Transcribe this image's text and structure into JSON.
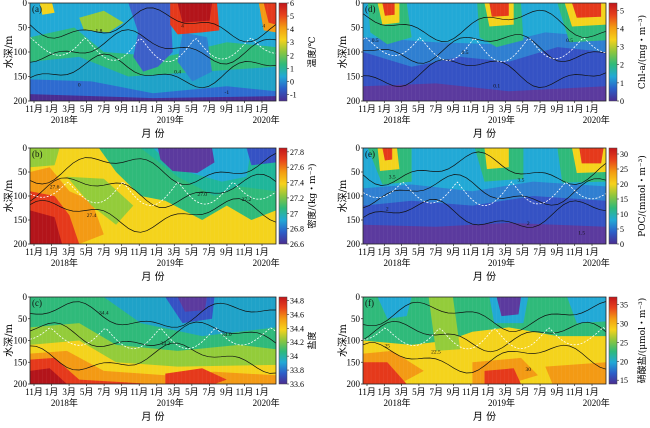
{
  "figure": {
    "xlabel": "月 份",
    "ylabel": "水深/m"
  },
  "chart_data": [
    {
      "type": "heatmap",
      "panel_label": "(a)",
      "variable_label": "温度/℃",
      "x_ticks": [
        "11月",
        "1月",
        "3月",
        "5月",
        "7月",
        "9月",
        "11月",
        "1月",
        "3月",
        "5月",
        "7月",
        "9月",
        "11月",
        "1月"
      ],
      "year_labels": [
        "2018年",
        "2019年",
        "2020年"
      ],
      "y_ticks": [
        0,
        50,
        100,
        150,
        200
      ],
      "ylim": [
        200,
        0
      ],
      "colorbar_ticks": [
        6,
        5,
        4,
        3,
        2,
        1,
        0,
        -1
      ],
      "colorbar_range": [
        -1.5,
        6
      ],
      "contour_labels": [
        "1.8",
        "0",
        "-1",
        "4",
        "4",
        "0.4"
      ],
      "colors": [
        "#4a2d91",
        "#2b5fc9",
        "#22a9d6",
        "#2fba7a",
        "#8cc63f",
        "#f6d21b",
        "#f39c12",
        "#e8431c",
        "#c2161b"
      ]
    },
    {
      "type": "heatmap",
      "panel_label": "(b)",
      "variable_label": "密度/(kg・m⁻³)",
      "x_ticks": [
        "11月",
        "1月",
        "3月",
        "5月",
        "7月",
        "9月",
        "11月",
        "1月",
        "3月",
        "5月",
        "7月",
        "9月",
        "11月",
        "1月"
      ],
      "year_labels": [
        "2018年",
        "2019年",
        "2020年"
      ],
      "y_ticks": [
        0,
        50,
        100,
        150,
        200
      ],
      "ylim": [
        200,
        0
      ],
      "colorbar_ticks": [
        27.8,
        27.6,
        27.4,
        27.2,
        27.0,
        26.8,
        26.6
      ],
      "colorbar_range": [
        26.6,
        27.85
      ],
      "contour_labels": [
        "27.0",
        "27.4",
        "27.6",
        "27.2"
      ],
      "colors": [
        "#4a2d91",
        "#2b5fc9",
        "#22a9d6",
        "#2fba7a",
        "#8cc63f",
        "#f6d21b",
        "#f39c12",
        "#e8431c",
        "#c2161b"
      ]
    },
    {
      "type": "heatmap",
      "panel_label": "(c)",
      "variable_label": "盐度",
      "x_ticks": [
        "11月",
        "1月",
        "3月",
        "5月",
        "7月",
        "9月",
        "11月",
        "1月",
        "3月",
        "5月",
        "7月",
        "9月",
        "11月",
        "1月"
      ],
      "year_labels": [
        "2018年",
        "2019年",
        "2020年"
      ],
      "y_ticks": [
        0,
        50,
        100,
        150,
        200
      ],
      "ylim": [
        200,
        0
      ],
      "colorbar_ticks": [
        34.8,
        34.6,
        34.4,
        34.2,
        34.0,
        33.8,
        33.6
      ],
      "colorbar_range": [
        33.6,
        34.85
      ],
      "contour_labels": [
        "34.4",
        "34.2",
        "34.0"
      ],
      "colors": [
        "#4a2d91",
        "#2b5fc9",
        "#22a9d6",
        "#2fba7a",
        "#8cc63f",
        "#f6d21b",
        "#f39c12",
        "#e8431c",
        "#c2161b"
      ]
    },
    {
      "type": "heatmap",
      "panel_label": "(d)",
      "variable_label": "Chl-a/(mg・m⁻³)",
      "x_ticks": [
        "11月",
        "1月",
        "3月",
        "5月",
        "7月",
        "9月",
        "11月",
        "1月",
        "3月",
        "5月",
        "7月",
        "9月",
        "11月",
        "1月"
      ],
      "year_labels": [
        "2018年",
        "2019年",
        "2020年"
      ],
      "y_ticks": [
        0,
        50,
        100,
        150,
        200
      ],
      "ylim": [
        200,
        0
      ],
      "colorbar_ticks": [
        5,
        4,
        3,
        2,
        1,
        0
      ],
      "colorbar_range": [
        0,
        5.4
      ],
      "contour_labels": [
        "0.5",
        "0.1",
        "0.5",
        "0.5"
      ],
      "colors": [
        "#4a2d91",
        "#2b5fc9",
        "#22a9d6",
        "#2fba7a",
        "#8cc63f",
        "#f6d21b",
        "#f39c12",
        "#e8431c",
        "#c2161b"
      ]
    },
    {
      "type": "heatmap",
      "panel_label": "(e)",
      "variable_label": "POC/(mmol・m⁻³)",
      "x_ticks": [
        "11月",
        "1月",
        "3月",
        "5月",
        "7月",
        "9月",
        "11月",
        "1月",
        "3月",
        "5月",
        "7月",
        "9月",
        "11月",
        "1月"
      ],
      "year_labels": [
        "2018年",
        "2019年",
        "2020年"
      ],
      "y_ticks": [
        0,
        50,
        100,
        150,
        200
      ],
      "ylim": [
        200,
        0
      ],
      "colorbar_ticks": [
        30,
        25,
        20,
        15,
        10,
        5,
        0
      ],
      "colorbar_range": [
        0,
        32
      ],
      "contour_labels": [
        "3.5",
        "2",
        "3.5",
        "2",
        "1.5"
      ],
      "colors": [
        "#4a2d91",
        "#2b5fc9",
        "#22a9d6",
        "#2fba7a",
        "#8cc63f",
        "#f6d21b",
        "#f39c12",
        "#e8431c",
        "#c2161b"
      ]
    },
    {
      "type": "heatmap",
      "panel_label": "(f)",
      "variable_label": "硝酸盐/(μmol・m⁻³)",
      "x_ticks": [
        "11月",
        "1月",
        "3月",
        "5月",
        "7月",
        "9月",
        "11月",
        "1月",
        "3月",
        "5月",
        "7月",
        "9月",
        "11月",
        "1月"
      ],
      "year_labels": [
        "2018年",
        "2019年",
        "2020年"
      ],
      "y_ticks": [
        0,
        50,
        100,
        150,
        200
      ],
      "ylim": [
        200,
        0
      ],
      "colorbar_ticks": [
        35,
        30,
        25,
        20,
        15
      ],
      "colorbar_range": [
        14,
        37
      ],
      "contour_labels": [
        "25",
        "22.5",
        "30"
      ],
      "colors": [
        "#4a2d91",
        "#2b5fc9",
        "#22a9d6",
        "#2fba7a",
        "#8cc63f",
        "#f6d21b",
        "#f39c12",
        "#e8431c",
        "#c2161b"
      ]
    }
  ]
}
